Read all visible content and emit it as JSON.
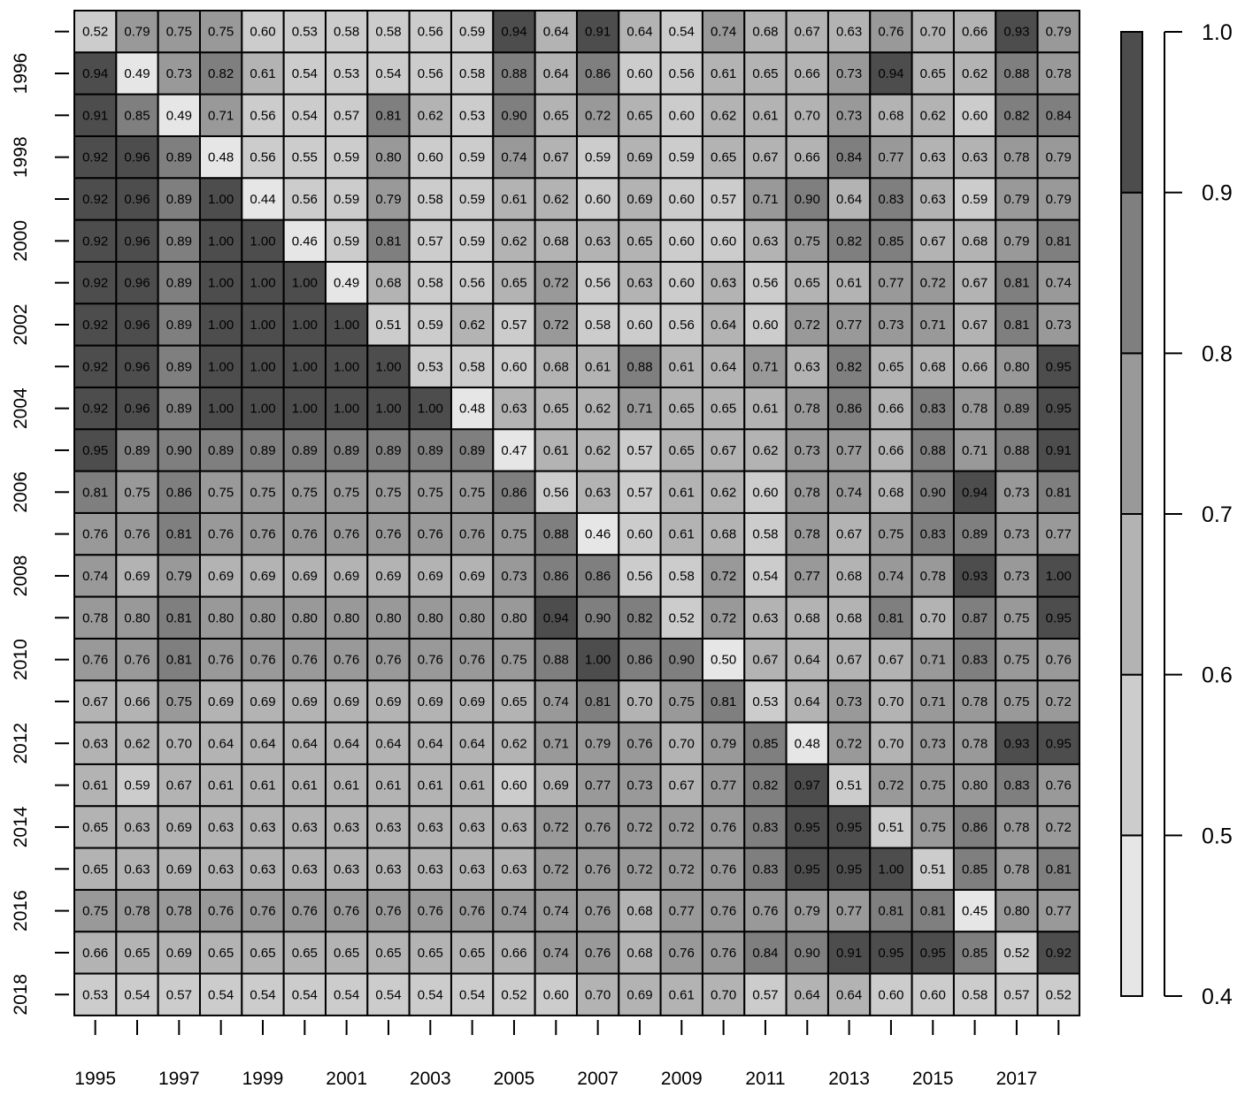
{
  "chart_data": {
    "type": "heatmap",
    "title": "",
    "xlabel": "",
    "ylabel": "",
    "years": [
      1995,
      1996,
      1997,
      1998,
      1999,
      2000,
      2001,
      2002,
      2003,
      2004,
      2005,
      2006,
      2007,
      2008,
      2009,
      2010,
      2011,
      2012,
      2013,
      2014,
      2015,
      2016,
      2017,
      2018
    ],
    "x_tick_labels": [
      "1995",
      "1997",
      "1999",
      "2001",
      "2003",
      "2005",
      "2007",
      "2009",
      "2011",
      "2013",
      "2015",
      "2017"
    ],
    "y_tick_labels": [
      "1996",
      "1998",
      "2000",
      "2002",
      "2004",
      "2006",
      "2008",
      "2010",
      "2012",
      "2014",
      "2016",
      "2018"
    ],
    "colorbar": {
      "range": [
        0.4,
        1.0
      ],
      "tick_labels": [
        "0.4",
        "0.5",
        "0.6",
        "0.7",
        "0.8",
        "0.9",
        "1.0"
      ],
      "breaks": [
        0.4,
        0.5,
        0.6,
        0.7,
        0.8,
        0.9,
        1.0
      ],
      "colors": [
        "#e6e6e6",
        "#cccccc",
        "#b3b3b3",
        "#999999",
        "#7f7f7f",
        "#4d4d4d"
      ]
    },
    "values": [
      [
        "0.52",
        "0.79",
        "0.75",
        "0.75",
        "0.60",
        "0.53",
        "0.58",
        "0.58",
        "0.56",
        "0.59",
        "0.94",
        "0.64",
        "0.91",
        "0.64",
        "0.54",
        "0.74",
        "0.68",
        "0.67",
        "0.63",
        "0.76",
        "0.70",
        "0.66",
        "0.93",
        "0.79"
      ],
      [
        "0.94",
        "0.49",
        "0.73",
        "0.82",
        "0.61",
        "0.54",
        "0.53",
        "0.54",
        "0.56",
        "0.58",
        "0.88",
        "0.64",
        "0.86",
        "0.60",
        "0.56",
        "0.61",
        "0.65",
        "0.66",
        "0.73",
        "0.94",
        "0.65",
        "0.62",
        "0.88",
        "0.78"
      ],
      [
        "0.91",
        "0.85",
        "0.49",
        "0.71",
        "0.56",
        "0.54",
        "0.57",
        "0.81",
        "0.62",
        "0.53",
        "0.90",
        "0.65",
        "0.72",
        "0.65",
        "0.60",
        "0.62",
        "0.61",
        "0.70",
        "0.73",
        "0.68",
        "0.62",
        "0.60",
        "0.82",
        "0.84"
      ],
      [
        "0.92",
        "0.96",
        "0.89",
        "0.48",
        "0.56",
        "0.55",
        "0.59",
        "0.80",
        "0.60",
        "0.59",
        "0.74",
        "0.67",
        "0.59",
        "0.69",
        "0.59",
        "0.65",
        "0.67",
        "0.66",
        "0.84",
        "0.77",
        "0.63",
        "0.63",
        "0.78",
        "0.79"
      ],
      [
        "0.92",
        "0.96",
        "0.89",
        "1.00",
        "0.44",
        "0.56",
        "0.59",
        "0.79",
        "0.58",
        "0.59",
        "0.61",
        "0.62",
        "0.60",
        "0.69",
        "0.60",
        "0.57",
        "0.71",
        "0.90",
        "0.64",
        "0.83",
        "0.63",
        "0.59",
        "0.79",
        "0.79"
      ],
      [
        "0.92",
        "0.96",
        "0.89",
        "1.00",
        "1.00",
        "0.46",
        "0.59",
        "0.81",
        "0.57",
        "0.59",
        "0.62",
        "0.68",
        "0.63",
        "0.65",
        "0.60",
        "0.60",
        "0.63",
        "0.75",
        "0.82",
        "0.85",
        "0.67",
        "0.68",
        "0.79",
        "0.81"
      ],
      [
        "0.92",
        "0.96",
        "0.89",
        "1.00",
        "1.00",
        "1.00",
        "0.49",
        "0.68",
        "0.58",
        "0.56",
        "0.65",
        "0.72",
        "0.56",
        "0.63",
        "0.60",
        "0.63",
        "0.56",
        "0.65",
        "0.61",
        "0.77",
        "0.72",
        "0.67",
        "0.81",
        "0.74"
      ],
      [
        "0.92",
        "0.96",
        "0.89",
        "1.00",
        "1.00",
        "1.00",
        "1.00",
        "0.51",
        "0.59",
        "0.62",
        "0.57",
        "0.72",
        "0.58",
        "0.60",
        "0.56",
        "0.64",
        "0.60",
        "0.72",
        "0.77",
        "0.73",
        "0.71",
        "0.67",
        "0.81",
        "0.73"
      ],
      [
        "0.92",
        "0.96",
        "0.89",
        "1.00",
        "1.00",
        "1.00",
        "1.00",
        "1.00",
        "0.53",
        "0.58",
        "0.60",
        "0.68",
        "0.61",
        "0.88",
        "0.61",
        "0.64",
        "0.71",
        "0.63",
        "0.82",
        "0.65",
        "0.68",
        "0.66",
        "0.80",
        "0.95"
      ],
      [
        "0.92",
        "0.96",
        "0.89",
        "1.00",
        "1.00",
        "1.00",
        "1.00",
        "1.00",
        "1.00",
        "0.48",
        "0.63",
        "0.65",
        "0.62",
        "0.71",
        "0.65",
        "0.65",
        "0.61",
        "0.78",
        "0.86",
        "0.66",
        "0.83",
        "0.78",
        "0.89",
        "0.95"
      ],
      [
        "0.95",
        "0.89",
        "0.90",
        "0.89",
        "0.89",
        "0.89",
        "0.89",
        "0.89",
        "0.89",
        "0.89",
        "0.47",
        "0.61",
        "0.62",
        "0.57",
        "0.65",
        "0.67",
        "0.62",
        "0.73",
        "0.77",
        "0.66",
        "0.88",
        "0.71",
        "0.88",
        "0.91"
      ],
      [
        "0.81",
        "0.75",
        "0.86",
        "0.75",
        "0.75",
        "0.75",
        "0.75",
        "0.75",
        "0.75",
        "0.75",
        "0.86",
        "0.56",
        "0.63",
        "0.57",
        "0.61",
        "0.62",
        "0.60",
        "0.78",
        "0.74",
        "0.68",
        "0.90",
        "0.94",
        "0.73",
        "0.81"
      ],
      [
        "0.76",
        "0.76",
        "0.81",
        "0.76",
        "0.76",
        "0.76",
        "0.76",
        "0.76",
        "0.76",
        "0.76",
        "0.75",
        "0.88",
        "0.46",
        "0.60",
        "0.61",
        "0.68",
        "0.58",
        "0.78",
        "0.67",
        "0.75",
        "0.83",
        "0.89",
        "0.73",
        "0.77"
      ],
      [
        "0.74",
        "0.69",
        "0.79",
        "0.69",
        "0.69",
        "0.69",
        "0.69",
        "0.69",
        "0.69",
        "0.69",
        "0.73",
        "0.86",
        "0.86",
        "0.56",
        "0.58",
        "0.72",
        "0.54",
        "0.77",
        "0.68",
        "0.74",
        "0.78",
        "0.93",
        "0.73",
        "1.00"
      ],
      [
        "0.78",
        "0.80",
        "0.81",
        "0.80",
        "0.80",
        "0.80",
        "0.80",
        "0.80",
        "0.80",
        "0.80",
        "0.80",
        "0.94",
        "0.90",
        "0.82",
        "0.52",
        "0.72",
        "0.63",
        "0.68",
        "0.68",
        "0.81",
        "0.70",
        "0.87",
        "0.75",
        "0.95"
      ],
      [
        "0.76",
        "0.76",
        "0.81",
        "0.76",
        "0.76",
        "0.76",
        "0.76",
        "0.76",
        "0.76",
        "0.76",
        "0.75",
        "0.88",
        "1.00",
        "0.86",
        "0.90",
        "0.50",
        "0.67",
        "0.64",
        "0.67",
        "0.67",
        "0.71",
        "0.83",
        "0.75",
        "0.76"
      ],
      [
        "0.67",
        "0.66",
        "0.75",
        "0.69",
        "0.69",
        "0.69",
        "0.69",
        "0.69",
        "0.69",
        "0.69",
        "0.65",
        "0.74",
        "0.81",
        "0.70",
        "0.75",
        "0.81",
        "0.53",
        "0.64",
        "0.73",
        "0.70",
        "0.71",
        "0.78",
        "0.75",
        "0.72"
      ],
      [
        "0.63",
        "0.62",
        "0.70",
        "0.64",
        "0.64",
        "0.64",
        "0.64",
        "0.64",
        "0.64",
        "0.64",
        "0.62",
        "0.71",
        "0.79",
        "0.76",
        "0.70",
        "0.79",
        "0.85",
        "0.48",
        "0.72",
        "0.70",
        "0.73",
        "0.78",
        "0.93",
        "0.95"
      ],
      [
        "0.61",
        "0.59",
        "0.67",
        "0.61",
        "0.61",
        "0.61",
        "0.61",
        "0.61",
        "0.61",
        "0.61",
        "0.60",
        "0.69",
        "0.77",
        "0.73",
        "0.67",
        "0.77",
        "0.82",
        "0.97",
        "0.51",
        "0.72",
        "0.75",
        "0.80",
        "0.83",
        "0.76"
      ],
      [
        "0.65",
        "0.63",
        "0.69",
        "0.63",
        "0.63",
        "0.63",
        "0.63",
        "0.63",
        "0.63",
        "0.63",
        "0.63",
        "0.72",
        "0.76",
        "0.72",
        "0.72",
        "0.76",
        "0.83",
        "0.95",
        "0.95",
        "0.51",
        "0.75",
        "0.86",
        "0.78",
        "0.72"
      ],
      [
        "0.65",
        "0.63",
        "0.69",
        "0.63",
        "0.63",
        "0.63",
        "0.63",
        "0.63",
        "0.63",
        "0.63",
        "0.63",
        "0.72",
        "0.76",
        "0.72",
        "0.72",
        "0.76",
        "0.83",
        "0.95",
        "0.95",
        "1.00",
        "0.51",
        "0.85",
        "0.78",
        "0.81"
      ],
      [
        "0.75",
        "0.78",
        "0.78",
        "0.76",
        "0.76",
        "0.76",
        "0.76",
        "0.76",
        "0.76",
        "0.76",
        "0.74",
        "0.74",
        "0.76",
        "0.68",
        "0.77",
        "0.76",
        "0.76",
        "0.79",
        "0.77",
        "0.81",
        "0.81",
        "0.45",
        "0.80",
        "0.77"
      ],
      [
        "0.66",
        "0.65",
        "0.69",
        "0.65",
        "0.65",
        "0.65",
        "0.65",
        "0.65",
        "0.65",
        "0.65",
        "0.66",
        "0.74",
        "0.76",
        "0.68",
        "0.76",
        "0.76",
        "0.84",
        "0.90",
        "0.91",
        "0.95",
        "0.95",
        "0.85",
        "0.52",
        "0.92"
      ],
      [
        "0.53",
        "0.54",
        "0.57",
        "0.54",
        "0.54",
        "0.54",
        "0.54",
        "0.54",
        "0.54",
        "0.54",
        "0.52",
        "0.60",
        "0.70",
        "0.69",
        "0.61",
        "0.70",
        "0.57",
        "0.64",
        "0.64",
        "0.60",
        "0.60",
        "0.58",
        "0.57",
        "0.52"
      ]
    ]
  }
}
